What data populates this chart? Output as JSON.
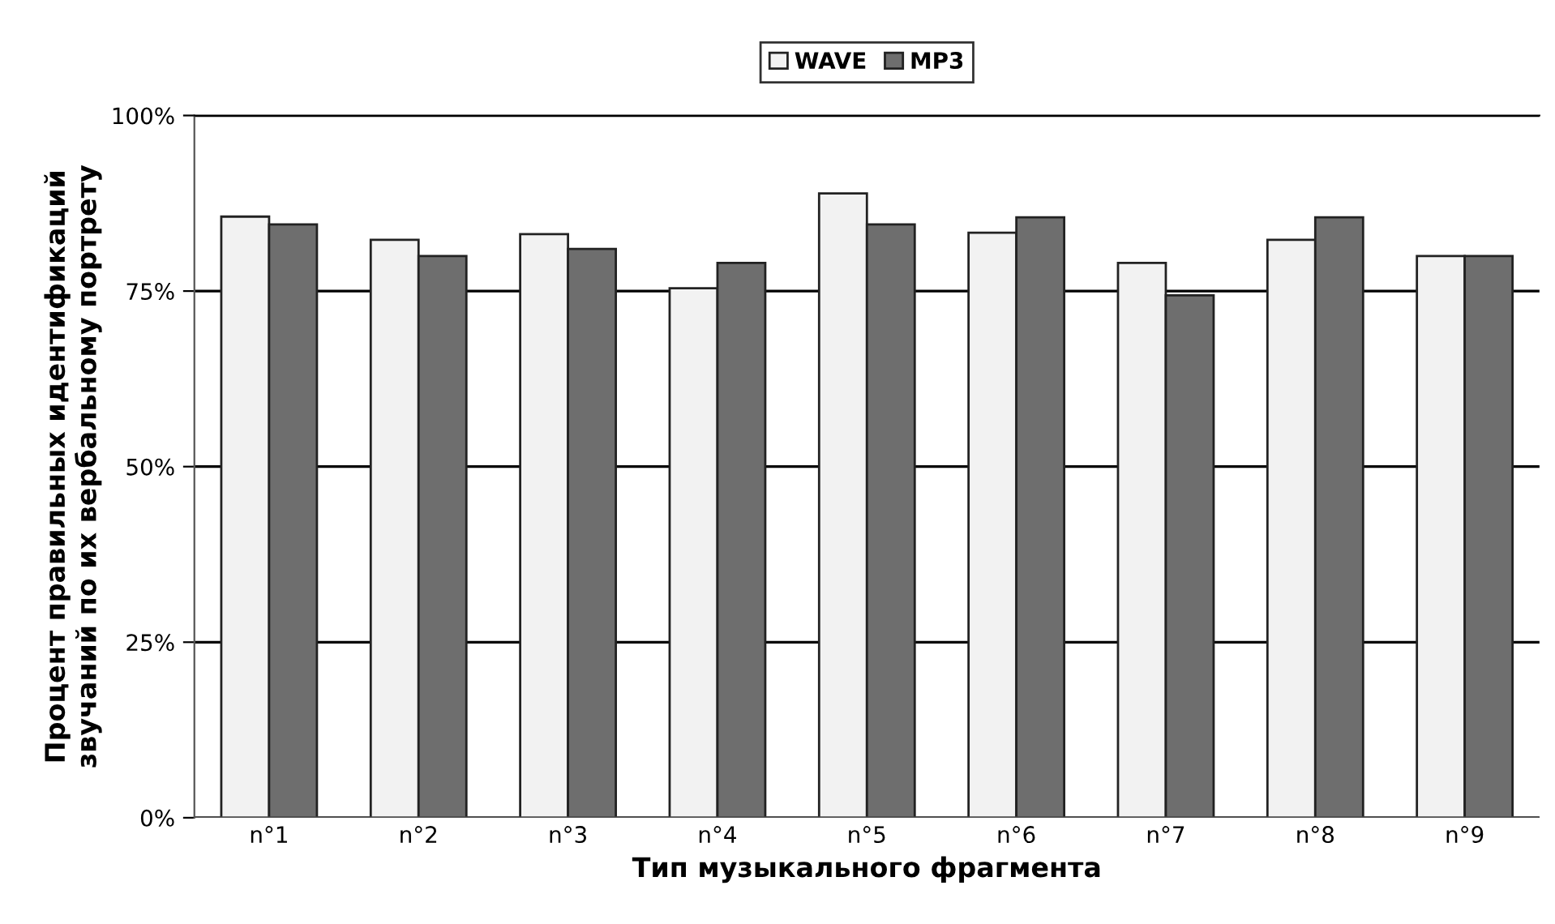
{
  "chart_data": {
    "type": "bar",
    "xlabel": "Тип музыкального фрагмента",
    "ylabel": "Процент правильных идентификаций\nзвучаний по их вербальному портрету",
    "categories": [
      "n°1",
      "n°2",
      "n°3",
      "n°4",
      "n°5",
      "n°6",
      "n°7",
      "n°8",
      "n°9"
    ],
    "series": [
      {
        "name": "WAVE",
        "color": "#f2f2f2",
        "values": [
          85.6,
          82.3,
          83.1,
          75.4,
          88.9,
          83.3,
          79,
          82.3,
          80
        ]
      },
      {
        "name": "MP3",
        "color": "#6e6e6e",
        "values": [
          84.5,
          80,
          81,
          79,
          84.5,
          85.5,
          74.4,
          85.5,
          80
        ]
      }
    ],
    "ylim": [
      0,
      100
    ],
    "yticks": [
      {
        "value": 0,
        "label": "0%"
      },
      {
        "value": 25,
        "label": "25%"
      },
      {
        "value": 50,
        "label": "50%"
      },
      {
        "value": 75,
        "label": "75%"
      },
      {
        "value": 100,
        "label": "100%"
      }
    ],
    "grid": "y",
    "legend": "top"
  }
}
